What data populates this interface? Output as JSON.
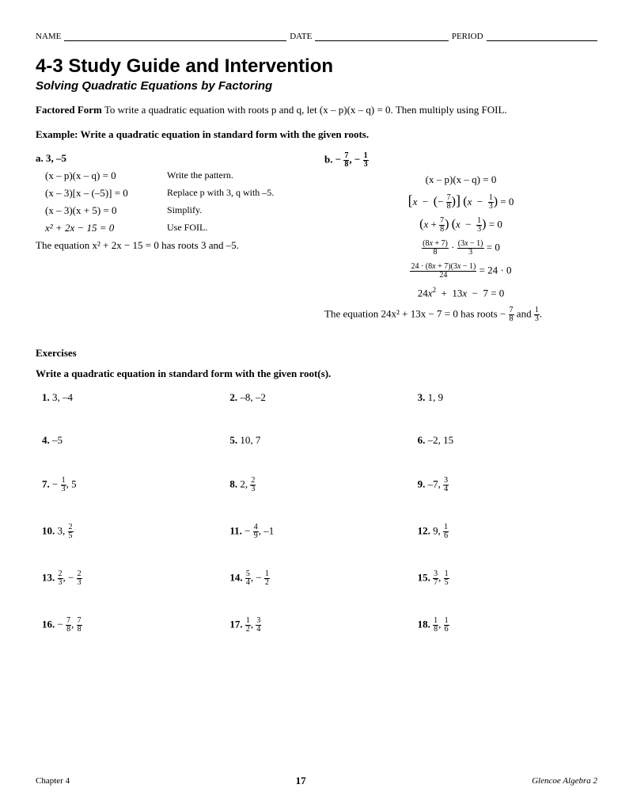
{
  "header": {
    "name": "NAME",
    "date": "DATE",
    "period": "PERIOD"
  },
  "title": "4-3 Study Guide and Intervention",
  "subtitle": "Solving Quadratic Equations by Factoring",
  "intro_bold": "Factored Form",
  "intro_rest": " To write a quadratic equation with roots p and q, let (x – p)(x – q) = 0. Then multiply using FOIL.",
  "example_label_bold": "Example:",
  "example_label_rest": " Write a quadratic equation in standard form with the given roots.",
  "exA": {
    "head": "a. 3, –5",
    "s1_eq": "(x – p)(x – q) = 0",
    "s1_note": "Write the pattern.",
    "s2_eq": "(x – 3)[x – (–5)] = 0",
    "s2_note": "Replace p with 3, q with –5.",
    "s3_eq": "(x – 3)(x + 5) = 0",
    "s3_note": "Simplify.",
    "s4_eq": "x²  +  2x  −  15 = 0",
    "s4_note": "Use FOIL.",
    "concl": "The equation x²  +  2x  −  15 = 0 has roots 3 and –5."
  },
  "exB": {
    "head_prefix": "b. ",
    "l1": "(x – p)(x – q) = 0",
    "concl_pre": "The equation 24x²  +  13x  −  7 = 0 has roots ",
    "concl_mid": " and ",
    "concl_end": "."
  },
  "exercises": "Exercises",
  "exercises_sub": "Write a quadratic equation in standard form with the given root(s).",
  "items": {
    "1": "3, –4",
    "2": "–8, –2",
    "3": "1, 9",
    "4": "–5",
    "5": "10, 7",
    "6": "–2, 15"
  },
  "footer": {
    "chapter": "Chapter 4",
    "page": "17",
    "book": "Glencoe Algebra 2"
  }
}
